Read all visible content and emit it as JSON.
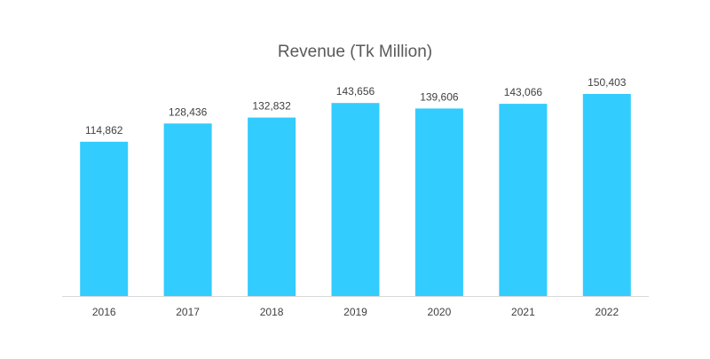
{
  "chart_data": {
    "type": "bar",
    "title": "Revenue (Tk Million)",
    "xlabel": "",
    "ylabel": "",
    "categories": [
      "2016",
      "2017",
      "2018",
      "2019",
      "2020",
      "2021",
      "2022"
    ],
    "values": [
      114862,
      128436,
      132832,
      143656,
      139606,
      143066,
      150403
    ],
    "value_labels": [
      "114,862",
      "128,436",
      "132,832",
      "143,656",
      "139,606",
      "143,066",
      "150,403"
    ],
    "ylim": [
      0,
      150403
    ],
    "grid": false,
    "legend": "none",
    "colors": {
      "bar": "#33ccff",
      "axis": "#d9d9d9",
      "label": "#404040",
      "title": "#595959"
    }
  }
}
